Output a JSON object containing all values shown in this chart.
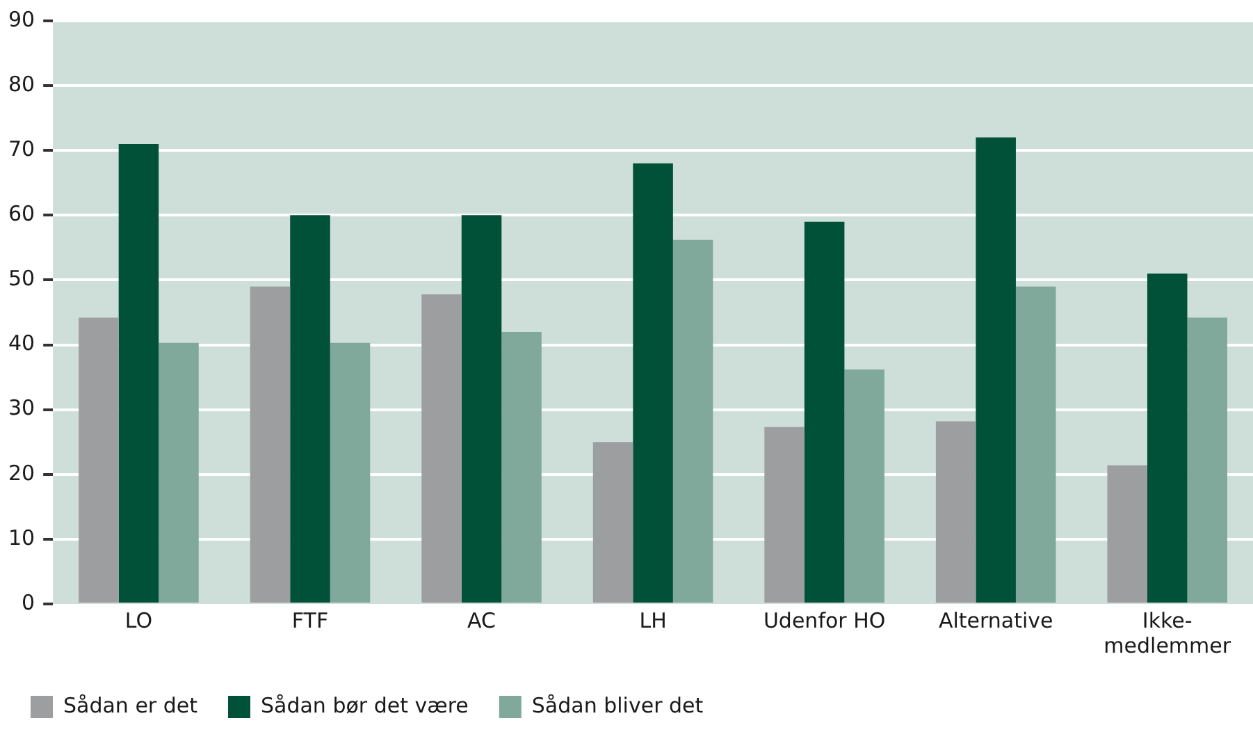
{
  "chart_data": {
    "type": "bar",
    "categories": [
      "LO",
      "FTF",
      "AC",
      "LH",
      "Udenfor HO",
      "Alternative",
      "Ikke-medlemmer"
    ],
    "series": [
      {
        "name": "Sådan er det",
        "color": "#9d9ea0",
        "values": [
          44.2,
          49,
          47.8,
          25,
          27.3,
          28.2,
          21.4
        ]
      },
      {
        "name": "Sådan bør det være",
        "color": "#005137",
        "values": [
          71,
          60,
          60,
          68,
          59,
          72,
          51
        ]
      },
      {
        "name": "Sådan bliver det",
        "color": "#80a99c",
        "values": [
          40.3,
          40.3,
          42,
          56.2,
          36.2,
          49,
          44.2
        ]
      }
    ],
    "ylim": [
      0,
      90
    ],
    "yticks": [
      0,
      10,
      20,
      30,
      40,
      50,
      60,
      70,
      80,
      90
    ],
    "grid": "y",
    "legend": "bottom left"
  }
}
